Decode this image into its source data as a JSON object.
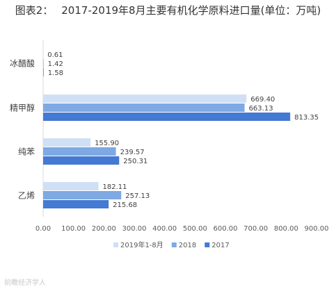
{
  "chart_data": {
    "type": "bar",
    "orientation": "horizontal",
    "title_prefix": "图表2：",
    "title": "2017-2019年8月主要有机化学原料进口量(单位：万吨)",
    "categories": [
      "冰醋酸",
      "精甲醇",
      "纯苯",
      "乙烯"
    ],
    "series": [
      {
        "name": "2019年1-8月",
        "color": "#cfe0f6",
        "values": [
          0.61,
          669.4,
          155.9,
          182.11
        ],
        "labels": [
          "0.61",
          "669.40",
          "155.90",
          "182.11"
        ]
      },
      {
        "name": "2018",
        "color": "#7ea9e3",
        "values": [
          1.42,
          663.13,
          239.57,
          257.13
        ],
        "labels": [
          "1.42",
          "663.13",
          "239.57",
          "257.13"
        ]
      },
      {
        "name": "2017",
        "color": "#4479d4",
        "values": [
          1.58,
          813.35,
          250.31,
          215.68
        ],
        "labels": [
          "1.58",
          "813.35",
          "250.31",
          "215.68"
        ]
      }
    ],
    "xlim": [
      0,
      900
    ],
    "xticks": [
      "0.00",
      "100.00",
      "200.00",
      "300.00",
      "400.00",
      "500.00",
      "600.00",
      "700.00",
      "800.00",
      "900.00"
    ],
    "grid": false,
    "legend_position": "bottom"
  },
  "watermark": "前瞻经济学人"
}
